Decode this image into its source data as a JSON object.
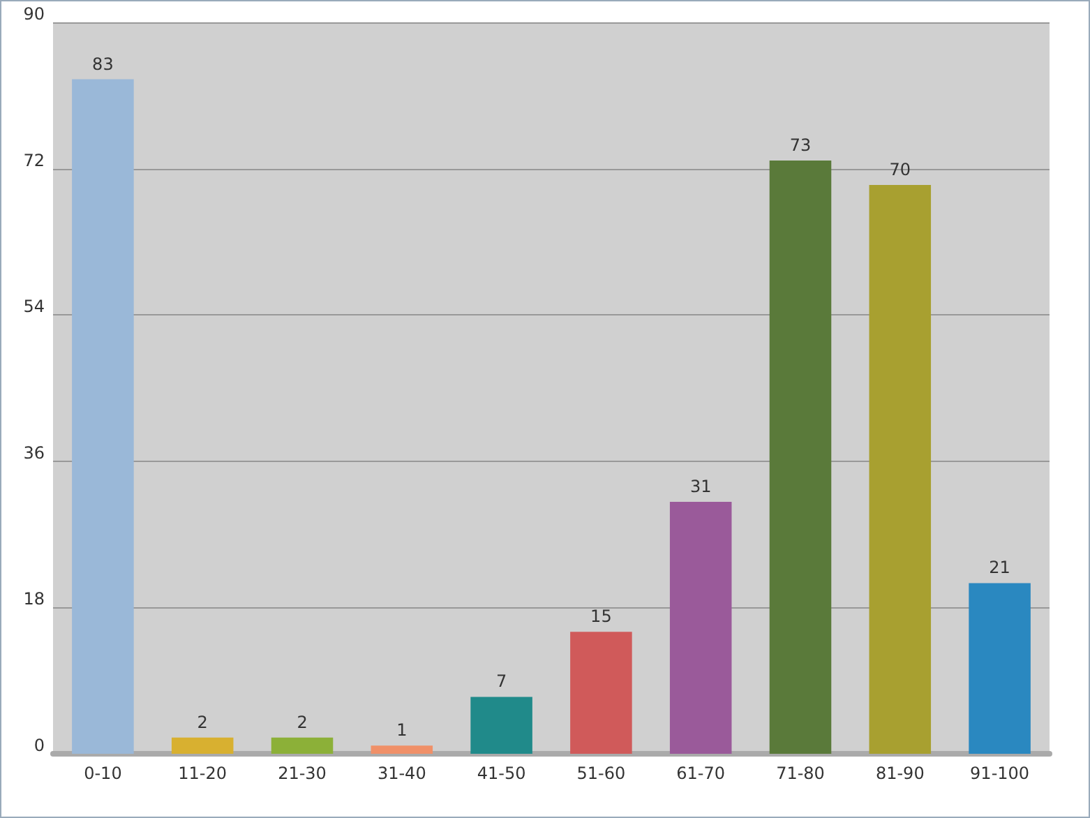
{
  "chart_data": {
    "type": "bar",
    "categories": [
      "0-10",
      "11-20",
      "21-30",
      "31-40",
      "41-50",
      "51-60",
      "61-70",
      "71-80",
      "81-90",
      "91-100"
    ],
    "values": [
      83,
      2,
      2,
      1,
      7,
      15,
      31,
      73,
      70,
      21
    ],
    "colors": [
      "#9ab8d8",
      "#d8b030",
      "#8cb038",
      "#f09068",
      "#208a8a",
      "#d05a5a",
      "#9a5a9a",
      "#5a7a3a",
      "#a8a030",
      "#2a88c0"
    ],
    "ylim": [
      0,
      90
    ],
    "yticks": [
      0,
      18,
      36,
      54,
      72,
      90
    ],
    "grid": "y",
    "data_labels": true
  }
}
